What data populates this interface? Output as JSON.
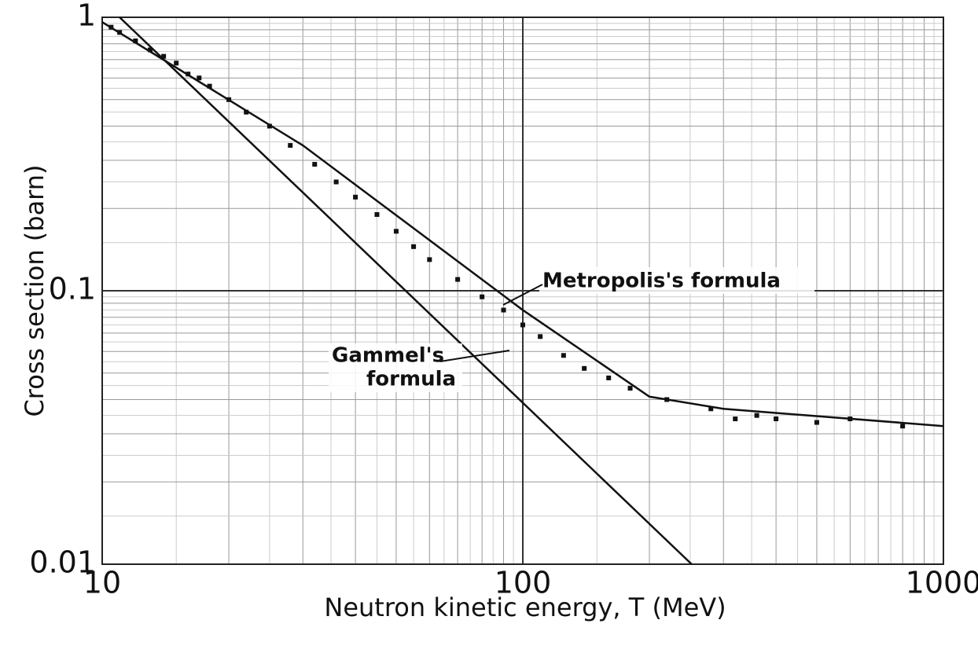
{
  "chart_data": {
    "type": "line",
    "xlabel": "Neutron kinetic energy, T (MeV)",
    "ylabel": "Cross section (barn)",
    "xscale": "log",
    "yscale": "log",
    "grid": true,
    "xlim": [
      10,
      1000
    ],
    "ylim": [
      0.01,
      1
    ],
    "xticks": [
      10,
      100,
      1000
    ],
    "yticks": [
      1,
      0.1,
      0.01
    ],
    "series": [
      {
        "name": "Metropolis's formula",
        "color": "#111111",
        "x": [
          10,
          30,
          100,
          200,
          300,
          1000
        ],
        "values": [
          0.96,
          0.34,
          0.085,
          0.041,
          0.037,
          0.032
        ]
      },
      {
        "name": "Gammel's formula",
        "label_lines": [
          "Gammel's",
          "formula"
        ],
        "color": "#111111",
        "x": [
          11,
          252
        ],
        "values": [
          1,
          0.01
        ]
      },
      {
        "name": "data",
        "type": "scatter",
        "color": "#111111",
        "x": [
          10.5,
          11,
          12,
          13,
          14,
          15,
          16,
          17,
          18,
          20,
          22,
          25,
          28,
          32,
          36,
          40,
          45,
          50,
          55,
          60,
          70,
          80,
          90,
          100,
          110,
          125,
          140,
          160,
          180,
          220,
          280,
          320,
          360,
          400,
          500,
          600,
          800
        ],
        "values": [
          0.92,
          0.88,
          0.82,
          0.76,
          0.72,
          0.68,
          0.62,
          0.6,
          0.56,
          0.5,
          0.45,
          0.4,
          0.34,
          0.29,
          0.25,
          0.22,
          0.19,
          0.165,
          0.145,
          0.13,
          0.11,
          0.095,
          0.085,
          0.075,
          0.068,
          0.058,
          0.052,
          0.048,
          0.044,
          0.04,
          0.037,
          0.034,
          0.035,
          0.034,
          0.033,
          0.034,
          0.032
        ]
      }
    ]
  }
}
